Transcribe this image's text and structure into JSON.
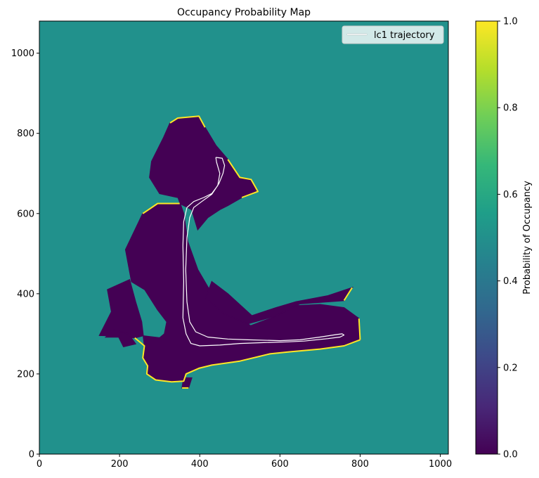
{
  "chart_data": {
    "type": "heatmap",
    "title": "Occupancy Probability Map",
    "xlabel": "",
    "ylabel": "",
    "xlim": [
      0,
      1020
    ],
    "ylim": [
      0,
      1080
    ],
    "xticks": [
      0,
      200,
      400,
      600,
      800,
      1000
    ],
    "yticks": [
      0,
      200,
      400,
      600,
      800,
      1000
    ],
    "background_value": 0.5,
    "free_space_value": 0.0,
    "occupied_value": 1.0,
    "colors": {
      "background": "#21918c",
      "free": "#440154",
      "occupied": "#fde725",
      "trajectory": "#ffffff"
    },
    "free_regions": [
      [
        [
          326,
          826
        ],
        [
          345,
          838
        ],
        [
          398,
          843
        ],
        [
          413,
          815
        ],
        [
          440,
          770
        ],
        [
          470,
          735
        ],
        [
          500,
          690
        ],
        [
          528,
          685
        ],
        [
          545,
          655
        ],
        [
          505,
          640
        ],
        [
          470,
          620
        ],
        [
          450,
          610
        ],
        [
          420,
          590
        ],
        [
          395,
          560
        ],
        [
          380,
          610
        ],
        [
          350,
          625
        ],
        [
          295,
          625
        ],
        [
          258,
          600
        ],
        [
          215,
          510
        ],
        [
          230,
          430
        ],
        [
          263,
          410
        ],
        [
          295,
          360
        ],
        [
          318,
          330
        ],
        [
          312,
          300
        ],
        [
          300,
          290
        ],
        [
          258,
          295
        ],
        [
          238,
          290
        ],
        [
          188,
          295
        ],
        [
          150,
          296
        ],
        [
          180,
          355
        ],
        [
          170,
          410
        ],
        [
          225,
          435
        ],
        [
          240,
          380
        ],
        [
          255,
          330
        ],
        [
          262,
          270
        ],
        [
          258,
          240
        ],
        [
          270,
          220
        ],
        [
          268,
          200
        ],
        [
          290,
          185
        ],
        [
          330,
          180
        ],
        [
          360,
          182
        ],
        [
          366,
          200
        ],
        [
          398,
          214
        ],
        [
          430,
          222
        ],
        [
          500,
          232
        ],
        [
          575,
          250
        ],
        [
          622,
          255
        ],
        [
          700,
          262
        ],
        [
          760,
          270
        ],
        [
          800,
          285
        ],
        [
          797,
          338
        ],
        [
          760,
          365
        ],
        [
          700,
          373
        ],
        [
          640,
          370
        ],
        [
          580,
          340
        ],
        [
          527,
          320
        ],
        [
          470,
          360
        ],
        [
          430,
          400
        ],
        [
          395,
          460
        ],
        [
          370,
          530
        ],
        [
          360,
          600
        ],
        [
          346,
          640
        ],
        [
          300,
          650
        ],
        [
          275,
          690
        ],
        [
          280,
          730
        ],
        [
          310,
          790
        ]
      ],
      [
        [
          415,
          390
        ],
        [
          460,
          350
        ],
        [
          520,
          325
        ],
        [
          590,
          345
        ],
        [
          650,
          375
        ],
        [
          760,
          383
        ],
        [
          780,
          415
        ],
        [
          720,
          395
        ],
        [
          640,
          380
        ],
        [
          590,
          365
        ],
        [
          530,
          345
        ],
        [
          470,
          400
        ],
        [
          430,
          430
        ]
      ],
      [
        [
          356,
          165
        ],
        [
          372,
          165
        ],
        [
          380,
          190
        ],
        [
          360,
          190
        ]
      ],
      [
        [
          166,
          292
        ],
        [
          198,
          292
        ],
        [
          210,
          268
        ],
        [
          240,
          275
        ],
        [
          222,
          300
        ],
        [
          185,
          310
        ]
      ]
    ],
    "occupied_edges": [
      [
        [
          326,
          826
        ],
        [
          345,
          838
        ],
        [
          398,
          843
        ],
        [
          413,
          815
        ]
      ],
      [
        [
          470,
          735
        ],
        [
          500,
          690
        ],
        [
          528,
          685
        ],
        [
          545,
          655
        ],
        [
          505,
          640
        ]
      ],
      [
        [
          258,
          600
        ],
        [
          295,
          625
        ],
        [
          350,
          625
        ]
      ],
      [
        [
          238,
          290
        ],
        [
          262,
          270
        ],
        [
          258,
          240
        ],
        [
          270,
          220
        ],
        [
          268,
          200
        ],
        [
          290,
          185
        ],
        [
          330,
          180
        ],
        [
          360,
          182
        ],
        [
          366,
          200
        ],
        [
          398,
          214
        ],
        [
          430,
          222
        ],
        [
          500,
          232
        ],
        [
          575,
          250
        ],
        [
          622,
          255
        ],
        [
          700,
          262
        ],
        [
          760,
          270
        ],
        [
          800,
          285
        ]
      ],
      [
        [
          800,
          285
        ],
        [
          797,
          338
        ]
      ],
      [
        [
          760,
          383
        ],
        [
          780,
          415
        ]
      ],
      [
        [
          356,
          165
        ],
        [
          372,
          165
        ]
      ]
    ],
    "series": [
      {
        "name": "lc1 trajectory",
        "type": "line",
        "color": "#ffffff",
        "points": [
          [
            440,
            740
          ],
          [
            456,
            738
          ],
          [
            462,
            720
          ],
          [
            458,
            700
          ],
          [
            448,
            675
          ],
          [
            430,
            648
          ],
          [
            405,
            630
          ],
          [
            385,
            615
          ],
          [
            375,
            590
          ],
          [
            368,
            540
          ],
          [
            365,
            460
          ],
          [
            368,
            380
          ],
          [
            375,
            330
          ],
          [
            390,
            305
          ],
          [
            420,
            292
          ],
          [
            470,
            287
          ],
          [
            520,
            285
          ],
          [
            600,
            283
          ],
          [
            650,
            285
          ],
          [
            700,
            292
          ],
          [
            740,
            298
          ],
          [
            755,
            300
          ],
          [
            760,
            297
          ],
          [
            750,
            292
          ],
          [
            720,
            288
          ],
          [
            660,
            282
          ],
          [
            620,
            280
          ],
          [
            560,
            278
          ],
          [
            500,
            276
          ],
          [
            450,
            272
          ],
          [
            400,
            270
          ],
          [
            378,
            276
          ],
          [
            366,
            300
          ],
          [
            358,
            340
          ],
          [
            360,
            430
          ],
          [
            358,
            520
          ],
          [
            360,
            580
          ],
          [
            368,
            615
          ],
          [
            385,
            630
          ],
          [
            410,
            640
          ],
          [
            430,
            650
          ],
          [
            445,
            670
          ],
          [
            450,
            700
          ],
          [
            442,
            728
          ],
          [
            440,
            740
          ]
        ]
      }
    ],
    "legend": {
      "entries": [
        "lc1 trajectory"
      ],
      "placement": "top-right"
    },
    "colorbar": {
      "label": "Probability of Occupancy",
      "range": [
        0,
        1
      ],
      "ticks": [
        "0.0",
        "0.2",
        "0.4",
        "0.6",
        "0.8",
        "1.0"
      ],
      "colormap": "viridis",
      "stops": [
        "#440154",
        "#482878",
        "#3e4989",
        "#31688e",
        "#26828e",
        "#1f9e89",
        "#35b779",
        "#6ece58",
        "#b5de2b",
        "#fde725"
      ]
    }
  }
}
